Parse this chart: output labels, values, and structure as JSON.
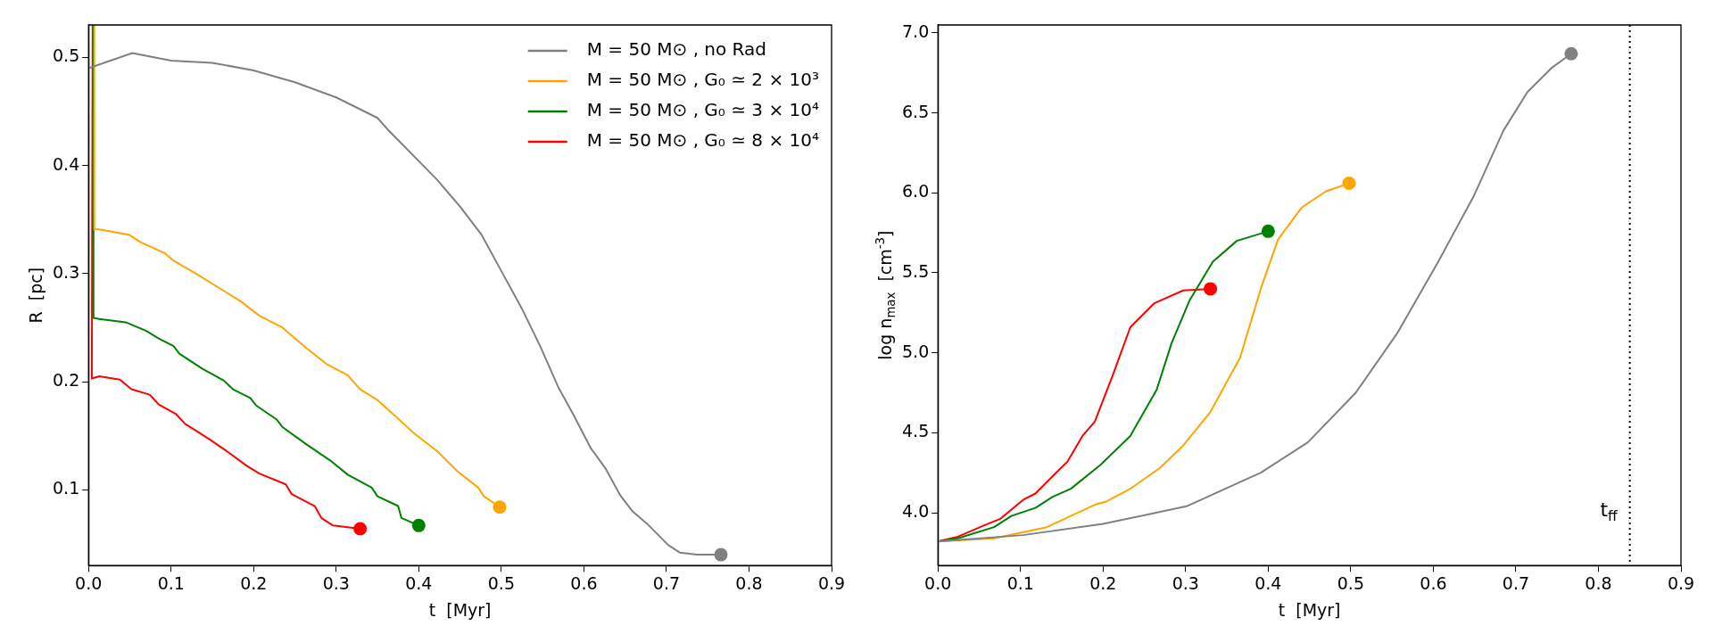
{
  "chart_data": [
    {
      "type": "line",
      "xlabel": "t  [Myr]",
      "ylabel": "R  [pc]",
      "xlim": [
        0,
        0.9
      ],
      "ylim": [
        0.03,
        0.53
      ],
      "xticks": [
        {
          "value": 0,
          "label": "0.0"
        },
        0.1,
        0.2,
        0.3,
        0.4,
        0.5,
        0.6,
        0.7,
        0.8,
        0.9
      ],
      "yticks": [
        0.1,
        0.2,
        0.3,
        0.4,
        0.5
      ],
      "grid": false,
      "legend": "top right",
      "series": [
        {
          "name": "M = 50 M⊙ , no Rad",
          "color": "#808080",
          "x": [
            0,
            0.053,
            0.1,
            0.15,
            0.2,
            0.25,
            0.3,
            0.35,
            0.364,
            0.422,
            0.45,
            0.476,
            0.501,
            0.526,
            0.547,
            0.569,
            0.587,
            0.608,
            0.626,
            0.644,
            0.659,
            0.676,
            0.702,
            0.716,
            0.737,
            0.766
          ],
          "values": [
            0.49,
            0.504,
            0.497,
            0.495,
            0.488,
            0.477,
            0.463,
            0.444,
            0.432,
            0.387,
            0.362,
            0.336,
            0.301,
            0.266,
            0.233,
            0.195,
            0.17,
            0.139,
            0.12,
            0.095,
            0.08,
            0.069,
            0.049,
            0.042,
            0.04,
            0.04
          ]
        },
        {
          "name": "M = 50 M⊙ , G₀ ≃ 2 × 10³",
          "color": "#ffa500",
          "x": [
            0.007,
            0.007,
            0.013,
            0.049,
            0.063,
            0.092,
            0.103,
            0.128,
            0.164,
            0.185,
            0.207,
            0.235,
            0.264,
            0.289,
            0.314,
            0.329,
            0.35,
            0.372,
            0.393,
            0.422,
            0.447,
            0.472,
            0.479,
            0.498
          ],
          "values": [
            0.53,
            0.341,
            0.341,
            0.336,
            0.329,
            0.319,
            0.312,
            0.301,
            0.284,
            0.274,
            0.261,
            0.25,
            0.231,
            0.216,
            0.206,
            0.193,
            0.183,
            0.168,
            0.153,
            0.136,
            0.117,
            0.102,
            0.094,
            0.084
          ]
        },
        {
          "name": "M = 50 M⊙ , G₀ ≃ 3 × 10⁴",
          "color": "#008000",
          "x": [
            0.006,
            0.006,
            0.013,
            0.045,
            0.07,
            0.085,
            0.103,
            0.11,
            0.138,
            0.164,
            0.175,
            0.196,
            0.203,
            0.228,
            0.235,
            0.264,
            0.293,
            0.314,
            0.343,
            0.35,
            0.375,
            0.379,
            0.4
          ],
          "values": [
            0.53,
            0.259,
            0.258,
            0.255,
            0.247,
            0.24,
            0.233,
            0.226,
            0.212,
            0.201,
            0.193,
            0.185,
            0.178,
            0.165,
            0.158,
            0.142,
            0.127,
            0.114,
            0.102,
            0.094,
            0.085,
            0.074,
            0.067
          ]
        },
        {
          "name": "M = 50 M⊙ , G₀ ≃ 8 × 10⁴",
          "color": "#ff0000",
          "x": [
            0.005,
            0.004,
            0.013,
            0.038,
            0.052,
            0.074,
            0.085,
            0.106,
            0.117,
            0.146,
            0.167,
            0.192,
            0.207,
            0.239,
            0.246,
            0.274,
            0.282,
            0.296,
            0.329
          ],
          "values": [
            0.53,
            0.203,
            0.205,
            0.202,
            0.193,
            0.188,
            0.179,
            0.17,
            0.161,
            0.147,
            0.136,
            0.122,
            0.115,
            0.105,
            0.096,
            0.085,
            0.074,
            0.067,
            0.064
          ]
        },
        {
          "type": "scatter",
          "marker": "circle",
          "color": "#808080",
          "x": [
            0.766
          ],
          "values": [
            0.04
          ]
        },
        {
          "type": "scatter",
          "marker": "circle",
          "color": "#ffa500",
          "x": [
            0.498
          ],
          "values": [
            0.084
          ]
        },
        {
          "type": "scatter",
          "marker": "circle",
          "color": "#008000",
          "x": [
            0.4
          ],
          "values": [
            0.067
          ]
        },
        {
          "type": "scatter",
          "marker": "circle",
          "color": "#ff0000",
          "x": [
            0.329
          ],
          "values": [
            0.064
          ]
        }
      ]
    },
    {
      "type": "line",
      "xlabel": "t  [Myr]",
      "ylabel": "log n$_{max}$  [cm$^{-3}$]",
      "xlim": [
        0,
        0.9
      ],
      "ylim": [
        3.67,
        7.05
      ],
      "xticks": [
        {
          "value": 0,
          "label": "0.0"
        },
        0.1,
        0.2,
        0.3,
        0.4,
        0.5,
        0.6,
        0.7,
        0.8,
        0.9
      ],
      "yticks": [
        {
          "value": 4,
          "label": "4.0"
        },
        4.5,
        {
          "value": 5,
          "label": "5.0"
        },
        5.5,
        {
          "value": 6,
          "label": "6.0"
        },
        6.5,
        {
          "value": 7,
          "label": "7.0"
        }
      ],
      "grid": false,
      "ref_lines": [
        {
          "axis": "x",
          "value": 0.838,
          "label": "t$_{ff}$",
          "color": "#000000",
          "line_style": "dotted"
        }
      ],
      "series": [
        {
          "color": "#808080",
          "x": [
            0,
            0.103,
            0.2,
            0.301,
            0.391,
            0.448,
            0.506,
            0.556,
            0.606,
            0.649,
            0.685,
            0.714,
            0.743,
            0.767
          ],
          "values": [
            3.82,
            3.86,
            3.93,
            4.04,
            4.25,
            4.44,
            4.75,
            5.12,
            5.57,
            5.98,
            6.39,
            6.63,
            6.78,
            6.87
          ]
        },
        {
          "color": "#ffa500",
          "x": [
            0,
            0.068,
            0.132,
            0.161,
            0.19,
            0.204,
            0.233,
            0.269,
            0.297,
            0.33,
            0.366,
            0.391,
            0.412,
            0.441,
            0.47,
            0.498
          ],
          "values": [
            3.82,
            3.84,
            3.91,
            3.98,
            4.05,
            4.07,
            4.15,
            4.28,
            4.42,
            4.63,
            4.97,
            5.4,
            5.71,
            5.91,
            6.01,
            6.06
          ]
        },
        {
          "color": "#008000",
          "x": [
            0,
            0.024,
            0.068,
            0.089,
            0.118,
            0.139,
            0.161,
            0.197,
            0.233,
            0.265,
            0.283,
            0.305,
            0.333,
            0.362,
            0.4
          ],
          "values": [
            3.82,
            3.84,
            3.91,
            3.98,
            4.03,
            4.1,
            4.15,
            4.3,
            4.48,
            4.77,
            5.06,
            5.33,
            5.57,
            5.7,
            5.76
          ]
        },
        {
          "color": "#ff0000",
          "x": [
            0,
            0.024,
            0.06,
            0.075,
            0.103,
            0.118,
            0.143,
            0.157,
            0.175,
            0.19,
            0.211,
            0.233,
            0.262,
            0.297,
            0.33
          ],
          "values": [
            3.82,
            3.85,
            3.93,
            3.96,
            4.08,
            4.12,
            4.25,
            4.32,
            4.48,
            4.57,
            4.85,
            5.16,
            5.31,
            5.39,
            5.4
          ]
        },
        {
          "type": "scatter",
          "marker": "circle",
          "color": "#808080",
          "x": [
            0.767
          ],
          "values": [
            6.87
          ]
        },
        {
          "type": "scatter",
          "marker": "circle",
          "color": "#ffa500",
          "x": [
            0.498
          ],
          "values": [
            6.06
          ]
        },
        {
          "type": "scatter",
          "marker": "circle",
          "color": "#008000",
          "x": [
            0.4
          ],
          "values": [
            5.76
          ]
        },
        {
          "type": "scatter",
          "marker": "circle",
          "color": "#ff0000",
          "x": [
            0.33
          ],
          "values": [
            5.4
          ]
        }
      ]
    }
  ]
}
